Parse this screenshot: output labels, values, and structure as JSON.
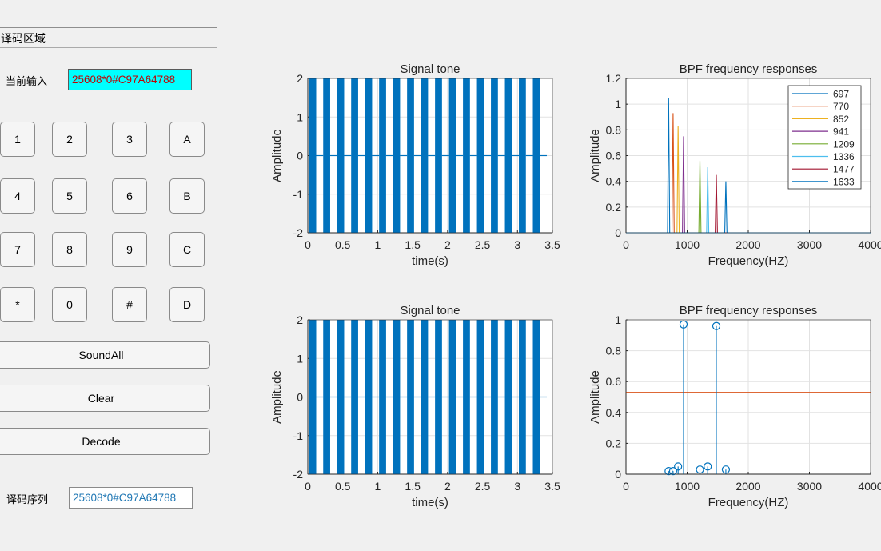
{
  "panel": {
    "title": "译码区域",
    "input_label": "当前输入",
    "input_value": "25608*0#C97A64788",
    "output_label": "译码序列",
    "output_value": "25608*0#C97A64788",
    "keys": [
      {
        "label": "1"
      },
      {
        "label": "2"
      },
      {
        "label": "3"
      },
      {
        "label": "A"
      },
      {
        "label": "4"
      },
      {
        "label": "5"
      },
      {
        "label": "6"
      },
      {
        "label": "B"
      },
      {
        "label": "7"
      },
      {
        "label": "8"
      },
      {
        "label": "9"
      },
      {
        "label": "C"
      },
      {
        "label": "*"
      },
      {
        "label": "0"
      },
      {
        "label": "#"
      },
      {
        "label": "D"
      }
    ],
    "sound_all_label": "SoundAll",
    "clear_label": "Clear",
    "decode_label": "Decode"
  },
  "colors": {
    "signal": "#0072bd",
    "threshold": "#d95319",
    "input_bg": "#00ffff",
    "input_text": "#c00000",
    "output_text": "#1f77b4"
  },
  "chart_data": [
    {
      "type": "line",
      "title": "Signal tone",
      "xlabel": "time(s)",
      "ylabel": "Amplitude",
      "xlim": [
        0,
        3.5
      ],
      "ylim": [
        -2,
        2
      ],
      "xticks": [
        "0",
        "0.5",
        "1",
        "1.5",
        "2",
        "2.5",
        "3",
        "3.5"
      ],
      "yticks": [
        "-2",
        "-1",
        "0",
        "1",
        "2"
      ],
      "tone_count": 17,
      "tone_duration_s": 0.1,
      "gap_duration_s": 0.1,
      "signal_end_s": 3.2,
      "amplitude": 2,
      "grid": true
    },
    {
      "type": "line",
      "title": "BPF frequency responses",
      "xlabel": "Frequency(HZ)",
      "ylabel": "Amplitude",
      "xlim": [
        0,
        4000
      ],
      "ylim": [
        0,
        1.2
      ],
      "xticks": [
        "0",
        "1000",
        "2000",
        "3000",
        "4000"
      ],
      "yticks": [
        "0",
        "0.2",
        "0.4",
        "0.6",
        "0.8",
        "1",
        "1.2"
      ],
      "grid": true,
      "legend": "top-right",
      "series": [
        {
          "name": "697",
          "freq": 697,
          "peak": 1.05,
          "color": "#0072bd"
        },
        {
          "name": "770",
          "freq": 770,
          "peak": 0.93,
          "color": "#d95319"
        },
        {
          "name": "852",
          "freq": 852,
          "peak": 0.83,
          "color": "#edb120"
        },
        {
          "name": "941",
          "freq": 941,
          "peak": 0.75,
          "color": "#7e2f8e"
        },
        {
          "name": "1209",
          "freq": 1209,
          "peak": 0.56,
          "color": "#77ac30"
        },
        {
          "name": "1336",
          "freq": 1336,
          "peak": 0.51,
          "color": "#4dbeee"
        },
        {
          "name": "1477",
          "freq": 1477,
          "peak": 0.45,
          "color": "#a2142f"
        },
        {
          "name": "1633",
          "freq": 1633,
          "peak": 0.4,
          "color": "#0072bd"
        }
      ]
    },
    {
      "type": "line",
      "title": "Signal tone",
      "xlabel": "time(s)",
      "ylabel": "Amplitude",
      "xlim": [
        0,
        3.5
      ],
      "ylim": [
        -2,
        2
      ],
      "xticks": [
        "0",
        "0.5",
        "1",
        "1.5",
        "2",
        "2.5",
        "3",
        "3.5"
      ],
      "yticks": [
        "-2",
        "-1",
        "0",
        "1",
        "2"
      ],
      "tone_count": 17,
      "tone_duration_s": 0.1,
      "gap_duration_s": 0.1,
      "signal_end_s": 3.2,
      "amplitude": 2,
      "grid": true
    },
    {
      "type": "scatter",
      "title": "BPF frequency responses",
      "xlabel": "Frequency(HZ)",
      "ylabel": "Amplitude",
      "xlim": [
        0,
        4000
      ],
      "ylim": [
        0,
        1
      ],
      "xticks": [
        "0",
        "1000",
        "2000",
        "3000",
        "4000"
      ],
      "yticks": [
        "0",
        "0.2",
        "0.4",
        "0.6",
        "0.8",
        "1"
      ],
      "grid": true,
      "stems": [
        {
          "x": 697,
          "y": 0.02
        },
        {
          "x": 770,
          "y": 0.02
        },
        {
          "x": 852,
          "y": 0.05
        },
        {
          "x": 941,
          "y": 0.97
        },
        {
          "x": 1209,
          "y": 0.03
        },
        {
          "x": 1336,
          "y": 0.05
        },
        {
          "x": 1477,
          "y": 0.96
        },
        {
          "x": 1633,
          "y": 0.03
        }
      ],
      "threshold": 0.53
    }
  ]
}
